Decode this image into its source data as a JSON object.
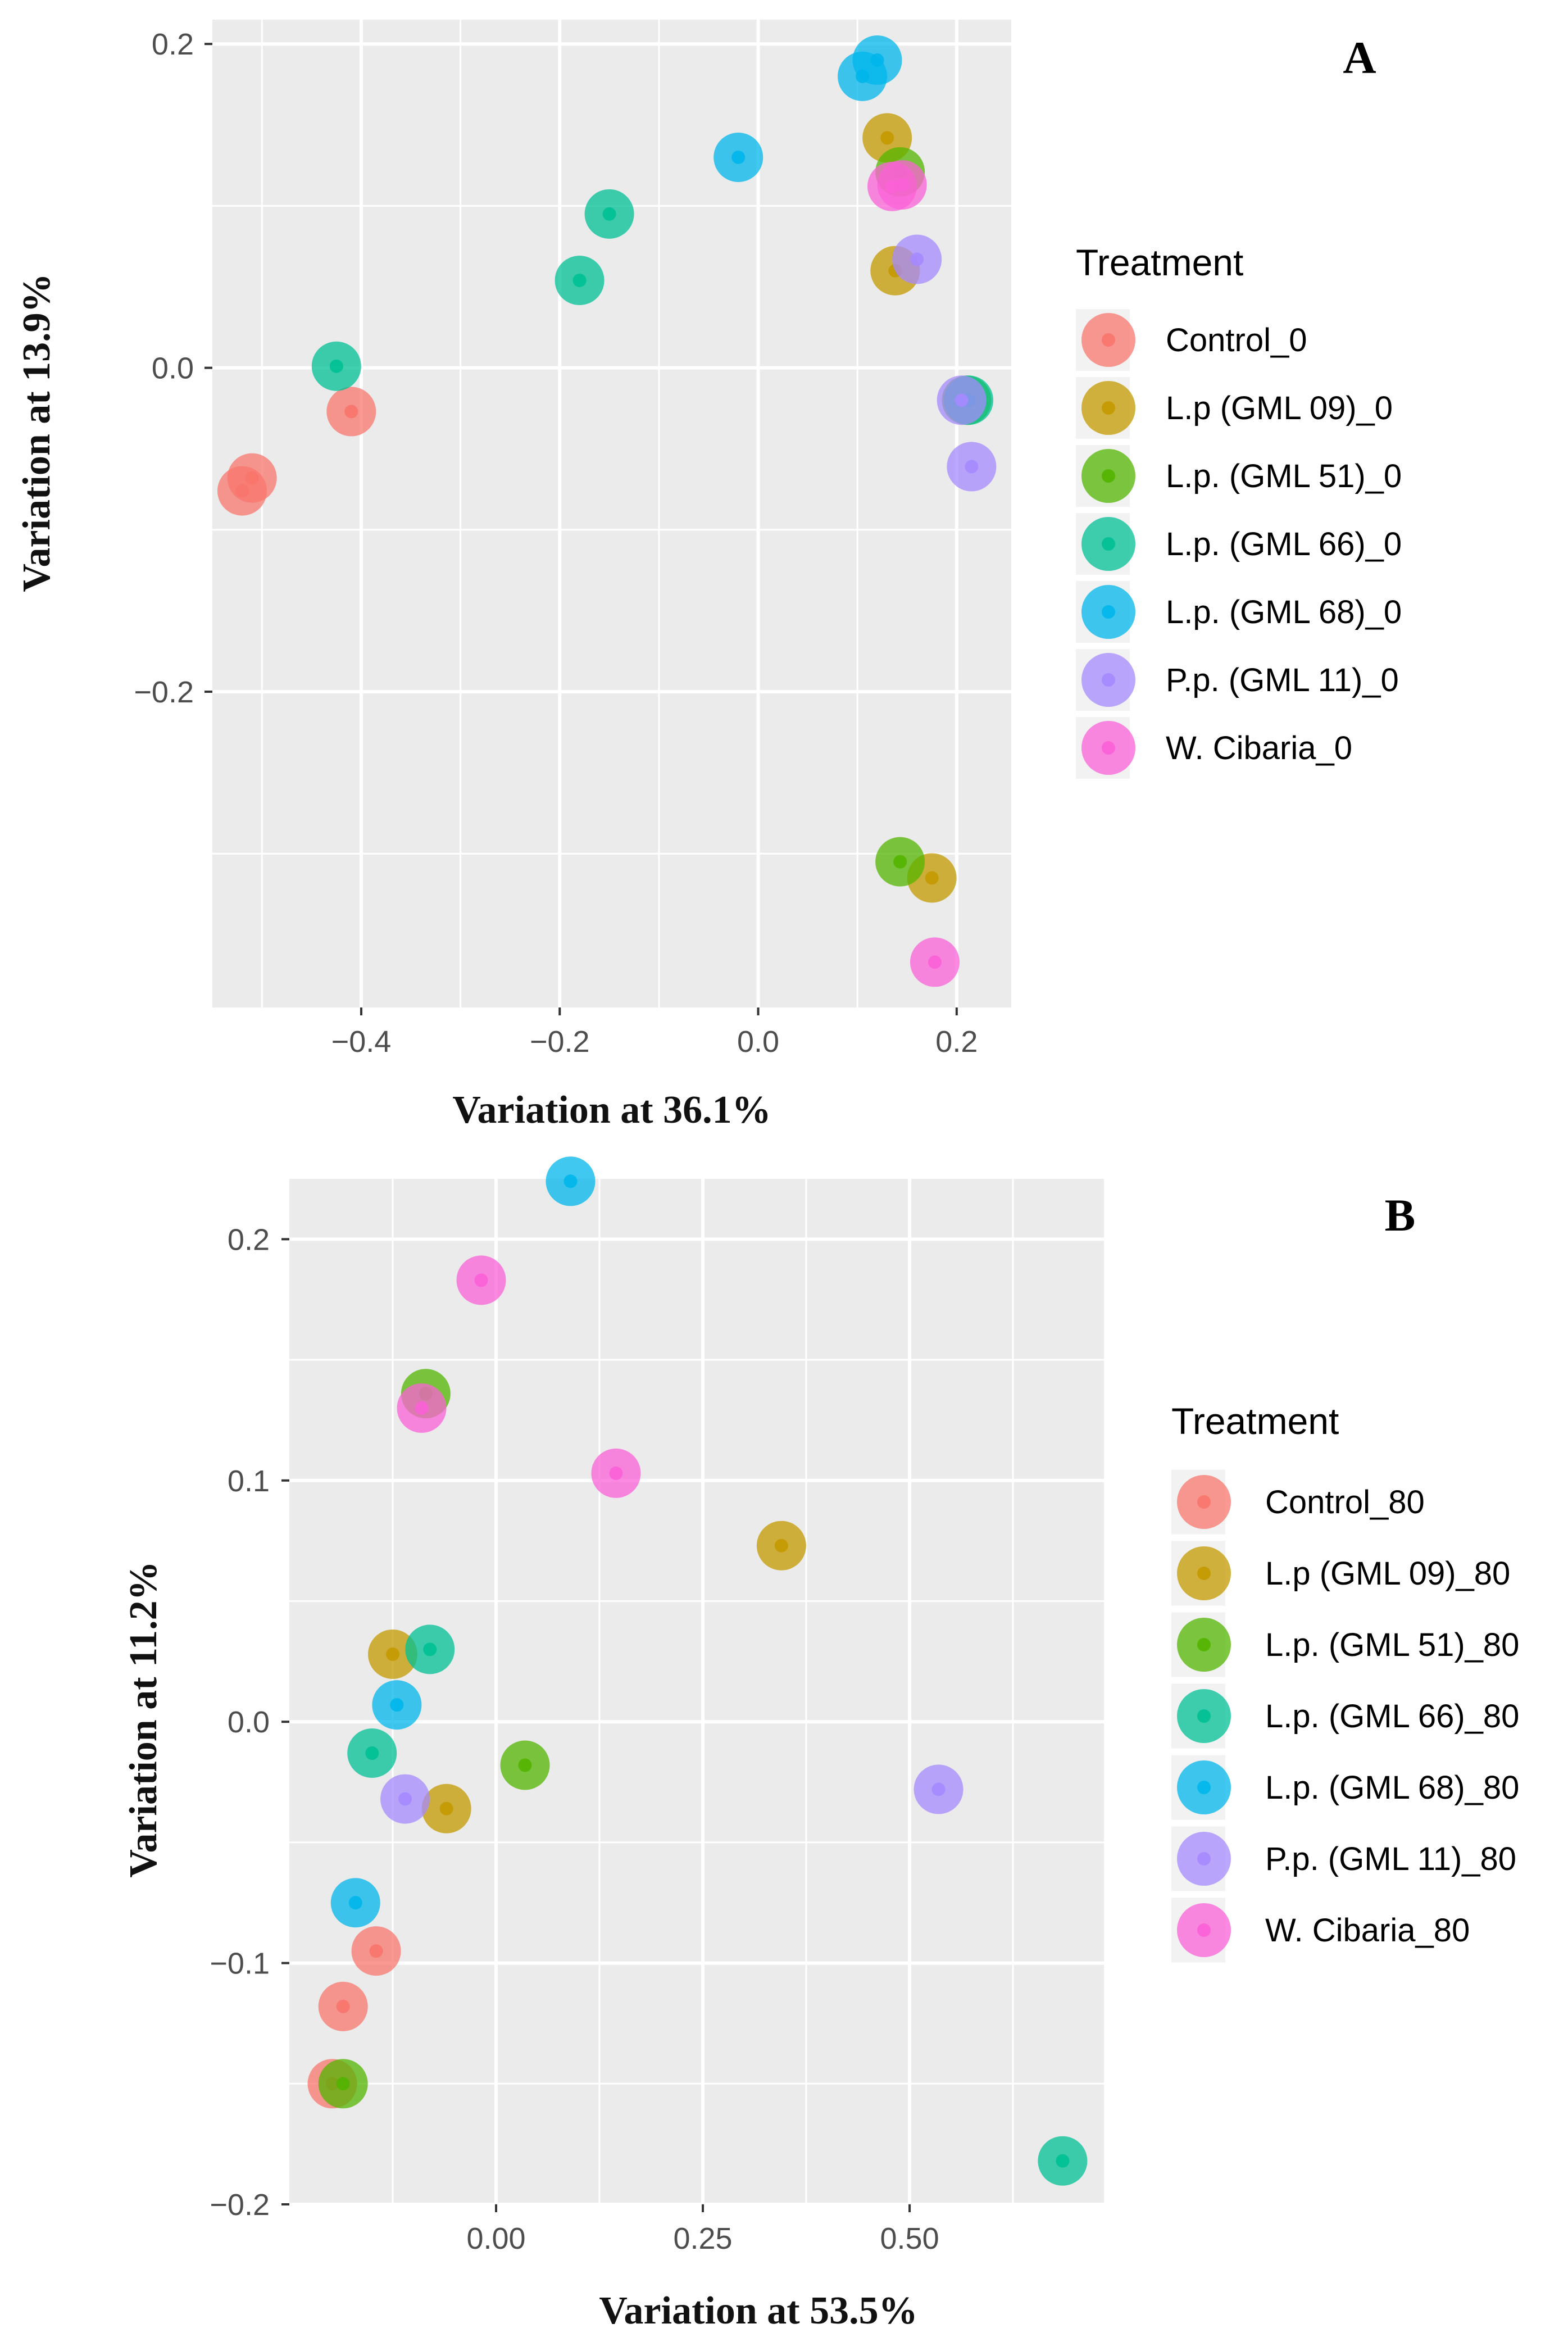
{
  "chart_data": [
    {
      "type": "scatter",
      "panel_label": "A",
      "xlabel": "Variation at 36.1%",
      "ylabel": "Variation at 13.9%",
      "xlim": [
        -0.55,
        0.255
      ],
      "ylim": [
        -0.395,
        0.215
      ],
      "x_ticks": [
        -0.4,
        -0.2,
        0.0,
        0.2
      ],
      "x_tick_labels": [
        "−0.4",
        "−0.2",
        "0.0",
        "0.2"
      ],
      "y_ticks": [
        -0.2,
        0.0,
        0.2
      ],
      "y_tick_labels": [
        "−0.2",
        "0.0",
        "0.2"
      ],
      "grid": true,
      "legend": {
        "title": "Treatment",
        "position": "right",
        "entries": [
          "Control_0",
          "L.p (GML 09)_0",
          "L.p. (GML 51)_0",
          "L.p. (GML 66)_0",
          "L.p. (GML 68)_0",
          "P.p. (GML 11)_0",
          "W. Cibaria_0"
        ]
      },
      "series": [
        {
          "name": "Control_0",
          "color": "#F8766D",
          "points": [
            [
              -0.52,
              -0.076
            ],
            [
              -0.51,
              -0.068
            ],
            [
              -0.41,
              -0.027
            ]
          ]
        },
        {
          "name": "L.p (GML 09)_0",
          "color": "#C49A00",
          "points": [
            [
              0.13,
              0.142
            ],
            [
              0.138,
              0.06
            ],
            [
              0.175,
              -0.315
            ]
          ]
        },
        {
          "name": "L.p. (GML 51)_0",
          "color": "#53B400",
          "points": [
            [
              0.143,
              0.121
            ],
            [
              0.21,
              -0.02
            ],
            [
              0.143,
              -0.305
            ]
          ]
        },
        {
          "name": "L.p. (GML 66)_0",
          "color": "#00C094",
          "points": [
            [
              -0.425,
              0.001
            ],
            [
              -0.18,
              0.054
            ],
            [
              -0.15,
              0.095
            ],
            [
              0.212,
              -0.02
            ]
          ]
        },
        {
          "name": "L.p. (GML 68)_0",
          "color": "#00B6EB",
          "points": [
            [
              0.12,
              0.19
            ],
            [
              0.105,
              0.18
            ],
            [
              -0.02,
              0.13
            ]
          ]
        },
        {
          "name": "P.p. (GML 11)_0",
          "color": "#A58AFF",
          "points": [
            [
              0.16,
              0.067
            ],
            [
              0.205,
              -0.02
            ],
            [
              0.215,
              -0.061
            ]
          ]
        },
        {
          "name": "W. Cibaria_0",
          "color": "#FB61D7",
          "points": [
            [
              0.135,
              0.112
            ],
            [
              0.145,
              0.113
            ],
            [
              0.178,
              -0.367
            ]
          ]
        }
      ]
    },
    {
      "type": "scatter",
      "panel_label": "B",
      "xlabel": "Variation at 53.5%",
      "ylabel": "Variation at 11.2%",
      "xlim": [
        -0.25,
        0.735
      ],
      "ylim": [
        -0.2,
        0.225
      ],
      "x_ticks": [
        0.0,
        0.25,
        0.5
      ],
      "x_tick_labels": [
        "0.00",
        "0.25",
        "0.50"
      ],
      "y_ticks": [
        -0.2,
        -0.1,
        0.0,
        0.1,
        0.2
      ],
      "y_tick_labels": [
        "−0.2",
        "−0.1",
        "0.0",
        "0.1",
        "0.2"
      ],
      "grid": true,
      "legend": {
        "title": "Treatment",
        "position": "right",
        "entries": [
          "Control_80",
          "L.p (GML 09)_80",
          "L.p. (GML 51)_80",
          "L.p. (GML 66)_80",
          "L.p. (GML 68)_80",
          "P.p. (GML 11)_80",
          "W. Cibaria_80"
        ]
      },
      "series": [
        {
          "name": "Control_80",
          "color": "#F8766D",
          "points": [
            [
              -0.145,
              -0.095
            ],
            [
              -0.185,
              -0.118
            ],
            [
              -0.198,
              -0.15
            ]
          ]
        },
        {
          "name": "L.p (GML 09)_80",
          "color": "#C49A00",
          "points": [
            [
              0.345,
              0.073
            ],
            [
              -0.125,
              0.028
            ],
            [
              -0.06,
              -0.036
            ]
          ]
        },
        {
          "name": "L.p. (GML 51)_80",
          "color": "#53B400",
          "points": [
            [
              -0.085,
              0.136
            ],
            [
              0.035,
              -0.018
            ],
            [
              -0.185,
              -0.15
            ]
          ]
        },
        {
          "name": "L.p. (GML 66)_80",
          "color": "#00C094",
          "points": [
            [
              -0.08,
              0.03
            ],
            [
              -0.15,
              -0.013
            ],
            [
              0.685,
              -0.182
            ]
          ]
        },
        {
          "name": "L.p. (GML 68)_80",
          "color": "#00B6EB",
          "points": [
            [
              0.09,
              0.224
            ],
            [
              -0.12,
              0.007
            ],
            [
              -0.17,
              -0.075
            ]
          ]
        },
        {
          "name": "P.p. (GML 11)_80",
          "color": "#A58AFF",
          "points": [
            [
              -0.11,
              -0.032
            ],
            [
              0.535,
              -0.028
            ]
          ]
        },
        {
          "name": "W. Cibaria_80",
          "color": "#FB61D7",
          "points": [
            [
              -0.018,
              0.183
            ],
            [
              -0.09,
              0.13
            ],
            [
              0.145,
              0.103
            ]
          ]
        }
      ]
    }
  ]
}
